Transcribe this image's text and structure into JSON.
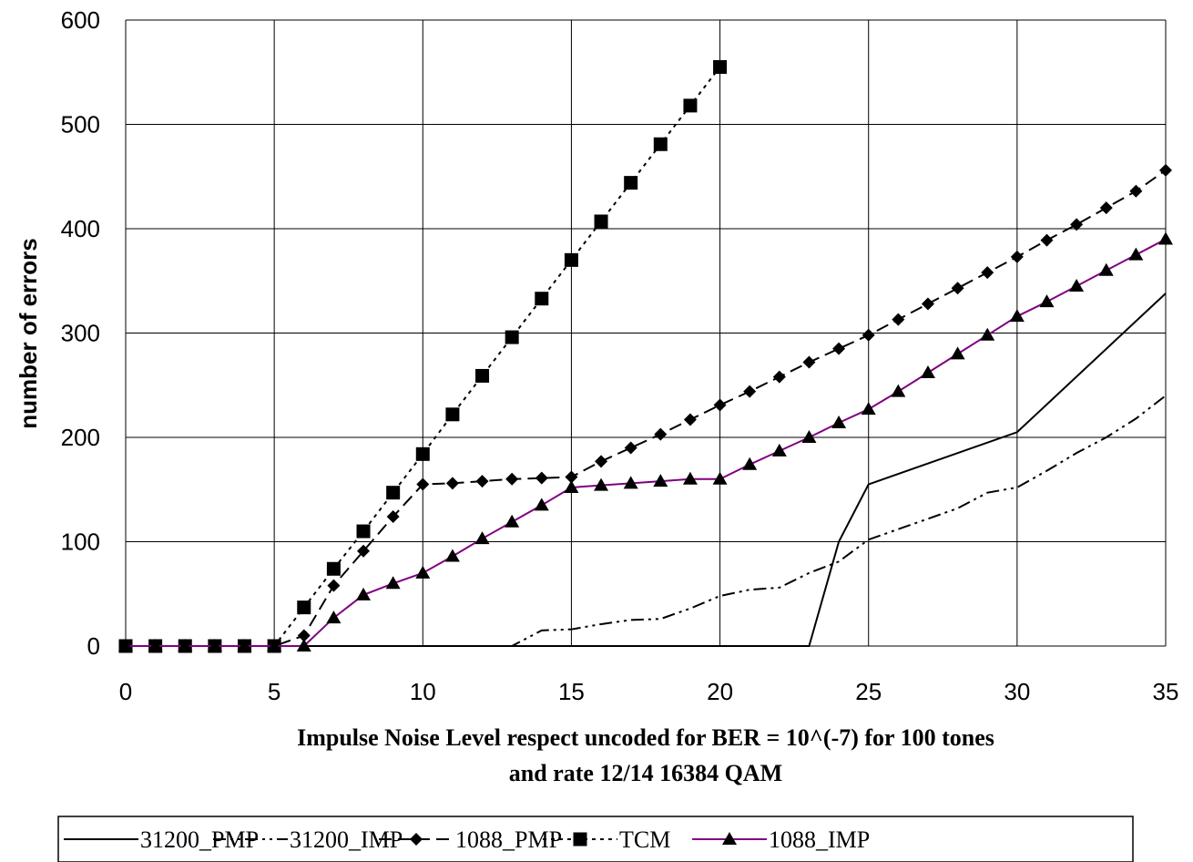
{
  "chart_data": {
    "type": "line",
    "title": "",
    "xlabel_lines": [
      "Impulse Noise Level respect uncoded for BER = 10^(-7) for  100 tones",
      "and rate 12/14 16384 QAM"
    ],
    "ylabel": "number of errors",
    "xlim": [
      0,
      35
    ],
    "ylim": [
      0,
      600
    ],
    "x_ticks": [
      0,
      5,
      10,
      15,
      20,
      25,
      30,
      35
    ],
    "y_ticks": [
      0,
      100,
      200,
      300,
      400,
      500,
      600
    ],
    "grid": true,
    "legend_position": "bottom",
    "series": [
      {
        "name": "31200_PMP",
        "color": "#000000",
        "line_style": "solid",
        "marker": "none",
        "x": [
          0,
          23,
          24,
          25,
          30,
          35
        ],
        "y": [
          0,
          0,
          100,
          155,
          205,
          338
        ]
      },
      {
        "name": "31200_IMP",
        "color": "#000000",
        "line_style": "dash-dot-dot",
        "marker": "none",
        "x": [
          0,
          12.5,
          13,
          14,
          15,
          16,
          17,
          18,
          19,
          20,
          21,
          22,
          23,
          24,
          25,
          26,
          27,
          28,
          29,
          30,
          31,
          32,
          33,
          34,
          35
        ],
        "y": [
          0,
          0,
          0,
          15,
          16,
          21,
          25,
          26,
          36,
          48,
          54,
          56,
          70,
          81,
          102,
          112,
          122,
          132,
          147,
          152,
          168,
          185,
          200,
          218,
          240
        ]
      },
      {
        "name": "1088_PMP",
        "color": "#000000",
        "line_style": "dashed",
        "marker": "diamond",
        "x": [
          0,
          1,
          2,
          3,
          4,
          5,
          6,
          7,
          8,
          9,
          10,
          11,
          12,
          13,
          14,
          15,
          16,
          17,
          18,
          19,
          20,
          21,
          22,
          23,
          24,
          25,
          26,
          27,
          28,
          29,
          30,
          31,
          32,
          33,
          34,
          35
        ],
        "y": [
          0,
          0,
          0,
          0,
          0,
          0,
          10,
          58,
          91,
          124,
          155,
          156,
          158,
          160,
          161,
          162,
          177,
          190,
          203,
          217,
          231,
          244,
          258,
          272,
          285,
          298,
          313,
          328,
          343,
          358,
          373,
          389,
          404,
          420,
          436,
          456
        ]
      },
      {
        "name": "TCM",
        "color": "#000000",
        "line_style": "dotted",
        "marker": "square",
        "x": [
          0,
          1,
          2,
          3,
          4,
          5,
          6,
          7,
          8,
          9,
          10,
          11,
          12,
          13,
          14,
          15,
          16,
          17,
          18,
          19,
          20
        ],
        "y": [
          0,
          0,
          0,
          0,
          0,
          0,
          37,
          74,
          110,
          147,
          184,
          222,
          259,
          296,
          333,
          370,
          407,
          444,
          481,
          518,
          555
        ]
      },
      {
        "name": "1088_IMP",
        "color": "#800080",
        "line_style": "solid",
        "marker": "triangle",
        "x": [
          0,
          1,
          2,
          3,
          4,
          5,
          6,
          7,
          8,
          9,
          10,
          11,
          12,
          13,
          14,
          15,
          16,
          17,
          18,
          19,
          20,
          21,
          22,
          23,
          24,
          25,
          26,
          27,
          28,
          29,
          30,
          31,
          32,
          33,
          34,
          35
        ],
        "y": [
          0,
          0,
          0,
          0,
          0,
          0,
          0,
          27,
          49,
          60,
          70,
          86,
          103,
          119,
          135,
          152,
          154,
          156,
          158,
          160,
          160,
          174,
          187,
          200,
          214,
          227,
          244,
          262,
          280,
          298,
          316,
          330,
          345,
          360,
          375,
          390
        ]
      }
    ]
  }
}
